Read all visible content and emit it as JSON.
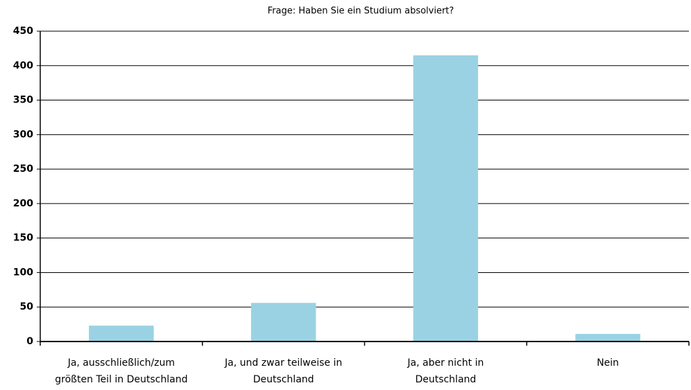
{
  "chart_data": {
    "type": "bar",
    "title": "Frage: Haben Sie ein Studium absolviert?",
    "categories": [
      "Ja, ausschließlich/zum\ngrößten Teil in Deutschland",
      "Ja, und zwar teilweise in\nDeutschland",
      "Ja, aber nicht in\nDeutschland",
      "Nein"
    ],
    "values": [
      23,
      56,
      415,
      11
    ],
    "color": "#9ad2e4",
    "ylim": [
      0,
      450
    ],
    "yticks": [
      0,
      50,
      100,
      150,
      200,
      250,
      300,
      350,
      400,
      450
    ],
    "grid": true
  }
}
